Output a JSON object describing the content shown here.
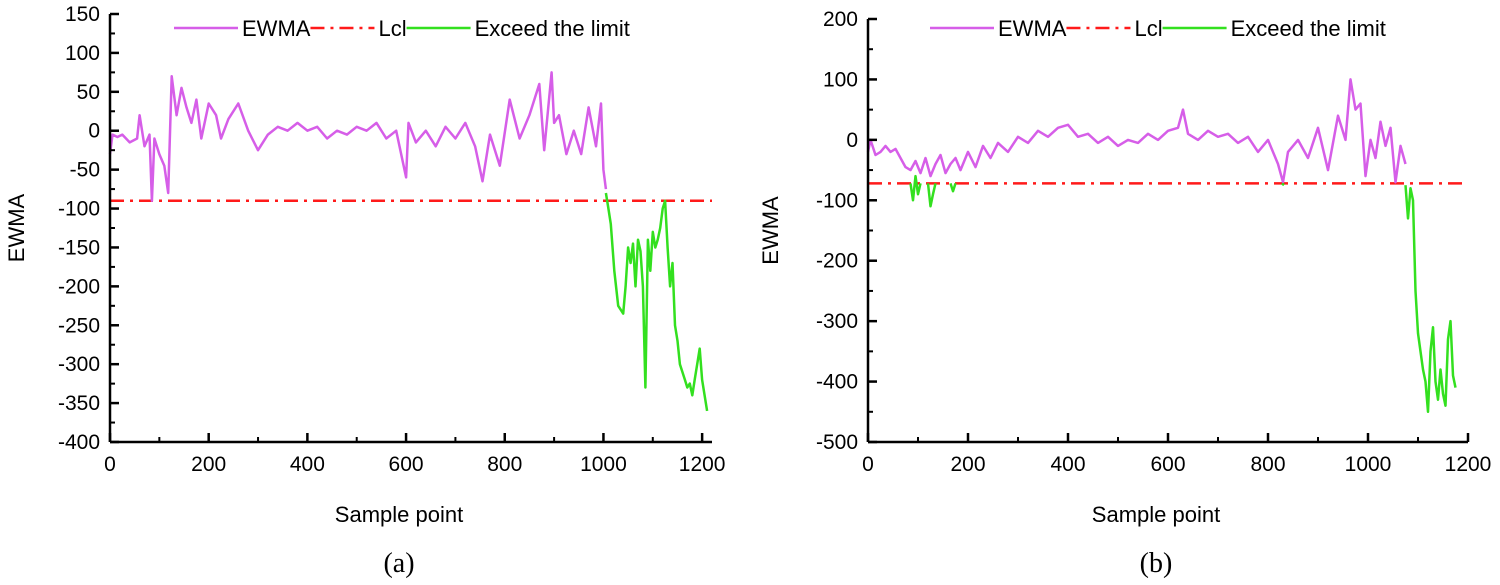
{
  "colors": {
    "ewma": "#d65ee8",
    "lcl": "#ff1a1a",
    "exceed": "#33e01f",
    "axis": "#000000"
  },
  "legend": {
    "ewma_label": "EWMA",
    "lcl_label": "Lcl",
    "exceed_label": "Exceed the limit"
  },
  "chart_data": [
    {
      "id": "a",
      "type": "line",
      "caption": "(a)",
      "xlabel": "Sample point",
      "ylabel": "EWMA",
      "xlim": [
        0,
        1220
      ],
      "ylim": [
        -400,
        150
      ],
      "xticks": [
        0,
        200,
        400,
        600,
        800,
        1000,
        1200
      ],
      "yticks": [
        150,
        100,
        50,
        0,
        -50,
        -100,
        -150,
        -200,
        -250,
        -300,
        -350,
        -400
      ],
      "ytick_labels": [
        "150",
        "100",
        "50",
        "0",
        "-50",
        "-100",
        "-150",
        "-200",
        "-250",
        "-300",
        "-350",
        "-400"
      ],
      "lcl": -90,
      "series": [
        {
          "name": "EWMA",
          "x": [
            0,
            5,
            15,
            25,
            40,
            55,
            60,
            70,
            80,
            85,
            90,
            100,
            110,
            118,
            125,
            135,
            145,
            155,
            165,
            175,
            185,
            200,
            215,
            225,
            240,
            260,
            280,
            300,
            320,
            340,
            360,
            380,
            400,
            420,
            440,
            460,
            480,
            500,
            520,
            540,
            560,
            580,
            600,
            605,
            620,
            640,
            660,
            680,
            700,
            720,
            740,
            755,
            770,
            790,
            810,
            830,
            850,
            870,
            880,
            895,
            900,
            910,
            925,
            940,
            955,
            970,
            985,
            995,
            1000,
            1005
          ],
          "y": [
            -30,
            -5,
            -8,
            -5,
            -15,
            -10,
            20,
            -20,
            -5,
            -90,
            -10,
            -30,
            -45,
            -80,
            70,
            20,
            55,
            30,
            10,
            40,
            -10,
            35,
            20,
            -10,
            15,
            35,
            0,
            -25,
            -5,
            5,
            0,
            10,
            0,
            5,
            -10,
            0,
            -5,
            5,
            0,
            10,
            -10,
            0,
            -60,
            10,
            -15,
            0,
            -20,
            5,
            -10,
            10,
            -20,
            -65,
            -5,
            -45,
            40,
            -10,
            20,
            60,
            -25,
            75,
            10,
            20,
            -30,
            0,
            -30,
            30,
            -20,
            35,
            -50,
            -75
          ]
        },
        {
          "name": "Exceed the limit",
          "x": [
            1005,
            1010,
            1015,
            1022,
            1030,
            1040,
            1045,
            1050,
            1055,
            1060,
            1065,
            1070,
            1075,
            1080,
            1085,
            1090,
            1095,
            1100,
            1105,
            1110,
            1115,
            1120,
            1125,
            1130,
            1135,
            1140,
            1145,
            1150,
            1155,
            1160,
            1165,
            1170,
            1175,
            1180,
            1185,
            1190,
            1195,
            1200,
            1205,
            1210
          ],
          "y": [
            -80,
            -100,
            -120,
            -180,
            -225,
            -235,
            -200,
            -150,
            -170,
            -145,
            -200,
            -140,
            -155,
            -200,
            -330,
            -140,
            -180,
            -130,
            -150,
            -140,
            -125,
            -100,
            -90,
            -150,
            -200,
            -170,
            -250,
            -270,
            -300,
            -310,
            -320,
            -330,
            -325,
            -340,
            -320,
            -300,
            -280,
            -320,
            -340,
            -360
          ]
        }
      ]
    },
    {
      "id": "b",
      "type": "line",
      "caption": "(b)",
      "xlabel": "Sample point",
      "ylabel": "EWMA",
      "xlim": [
        0,
        1200
      ],
      "ylim": [
        -500,
        200
      ],
      "xticks": [
        0,
        200,
        400,
        600,
        800,
        1000,
        1200
      ],
      "yticks": [
        200,
        100,
        0,
        -100,
        -200,
        -300,
        -400,
        -500
      ],
      "ytick_labels": [
        "200",
        "100",
        "0",
        "-100",
        "-200",
        "-300",
        "-400",
        "-500"
      ],
      "lcl": -72,
      "series": [
        {
          "name": "EWMA",
          "x": [
            0,
            5,
            15,
            25,
            35,
            45,
            55,
            65,
            75,
            85,
            95,
            105,
            115,
            125,
            135,
            145,
            155,
            165,
            175,
            185,
            200,
            215,
            230,
            245,
            260,
            280,
            300,
            320,
            340,
            360,
            380,
            400,
            420,
            440,
            460,
            480,
            500,
            520,
            540,
            560,
            580,
            600,
            620,
            630,
            640,
            660,
            680,
            700,
            720,
            740,
            760,
            780,
            800,
            820,
            830,
            840,
            860,
            880,
            900,
            920,
            940,
            955,
            965,
            975,
            985,
            995,
            1005,
            1015,
            1025,
            1035,
            1045,
            1055,
            1065,
            1075
          ],
          "y": [
            -20,
            0,
            -25,
            -20,
            -10,
            -20,
            -15,
            -30,
            -45,
            -50,
            -35,
            -55,
            -30,
            -60,
            -40,
            -25,
            -55,
            -40,
            -30,
            -50,
            -20,
            -45,
            -10,
            -30,
            -5,
            -20,
            5,
            -5,
            15,
            5,
            20,
            25,
            5,
            10,
            -5,
            5,
            -10,
            0,
            -5,
            10,
            0,
            15,
            20,
            50,
            10,
            0,
            15,
            5,
            10,
            -5,
            5,
            -20,
            0,
            -40,
            -70,
            -20,
            0,
            -30,
            20,
            -50,
            40,
            0,
            100,
            50,
            60,
            -60,
            0,
            -30,
            30,
            -10,
            20,
            -70,
            -10,
            -40
          ]
        },
        {
          "name": "Exceed the limit",
          "x": [
            1075,
            1080,
            1085,
            1090,
            1095,
            1100,
            1105,
            1110,
            1115,
            1120,
            1125,
            1130,
            1135,
            1140,
            1145,
            1150,
            1155,
            1160,
            1165,
            1170,
            1175
          ],
          "y": [
            -75,
            -130,
            -80,
            -100,
            -250,
            -320,
            -350,
            -380,
            -400,
            -450,
            -350,
            -310,
            -400,
            -430,
            -380,
            -420,
            -440,
            -330,
            -300,
            -390,
            -410
          ]
        },
        {
          "name": "Exceed the limit",
          "x": [
            85,
            90,
            95,
            100,
            105
          ],
          "y": [
            -72,
            -100,
            -60,
            -90,
            -72
          ]
        },
        {
          "name": "Exceed the limit",
          "x": [
            120,
            125,
            130,
            135
          ],
          "y": [
            -72,
            -110,
            -90,
            -72
          ]
        },
        {
          "name": "Exceed the limit",
          "x": [
            165,
            170,
            175
          ],
          "y": [
            -72,
            -85,
            -72
          ]
        },
        {
          "name": "Exceed the limit",
          "x": [
            828,
            832
          ],
          "y": [
            -72,
            -75
          ]
        }
      ]
    }
  ]
}
